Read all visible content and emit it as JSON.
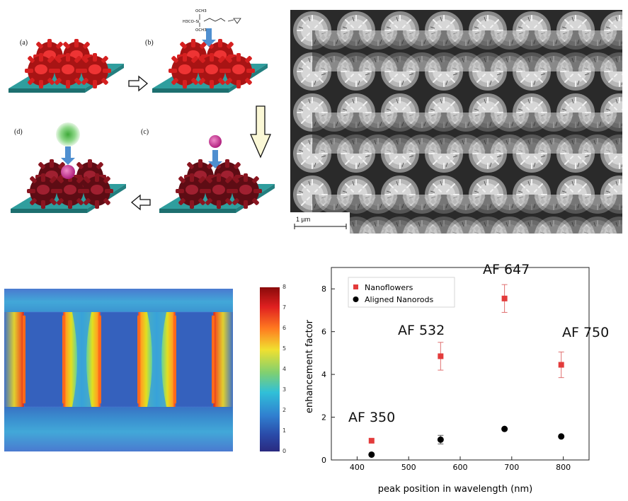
{
  "schematic": {
    "labels": {
      "a": "(a)",
      "b": "(b)",
      "c": "(c)",
      "d": "(d)"
    },
    "chem_formula": {
      "top": "OCH3",
      "mid": "H3CO–Si",
      "bottom": "OCH3"
    },
    "colors": {
      "substrate": "#2f9e9e",
      "flower": "#cc1f1f",
      "flower_dark": "#7a1018",
      "arrow_blue": "#4f8fd0",
      "dye_pink": "#cc3a9a",
      "dye_green": "#5bbf4a"
    }
  },
  "sem": {
    "scale_label": "1 µm"
  },
  "field_map": {
    "colorbar": {
      "ticks": [
        "8",
        "7",
        "6",
        "5",
        "4",
        "3",
        "2",
        "1",
        "0"
      ]
    }
  },
  "chart_data": {
    "type": "scatter",
    "xlabel": "peak position in wavelength (nm)",
    "ylabel": "enhancement factor",
    "xlim": [
      350,
      850
    ],
    "ylim": [
      0,
      9
    ],
    "xticks": [
      400,
      500,
      600,
      700,
      800
    ],
    "yticks": [
      0,
      2,
      4,
      6,
      8
    ],
    "legend_position": "top-left",
    "series": [
      {
        "name": "Nanoflowers",
        "marker": "square",
        "color": "#e33b3b",
        "x": [
          428,
          562,
          686,
          796
        ],
        "y": [
          0.9,
          4.85,
          7.55,
          4.45
        ],
        "err": [
          0.05,
          0.65,
          0.65,
          0.6
        ]
      },
      {
        "name": "Aligned Nanorods",
        "marker": "circle",
        "color": "#000000",
        "x": [
          428,
          562,
          686,
          796
        ],
        "y": [
          0.25,
          0.95,
          1.45,
          1.1
        ],
        "err": [
          0.05,
          0.2,
          0.05,
          0.05
        ]
      }
    ],
    "annotations": [
      {
        "text": "AF 350"
      },
      {
        "text": "AF 532"
      },
      {
        "text": "AF 647"
      },
      {
        "text": "AF 750"
      }
    ]
  }
}
